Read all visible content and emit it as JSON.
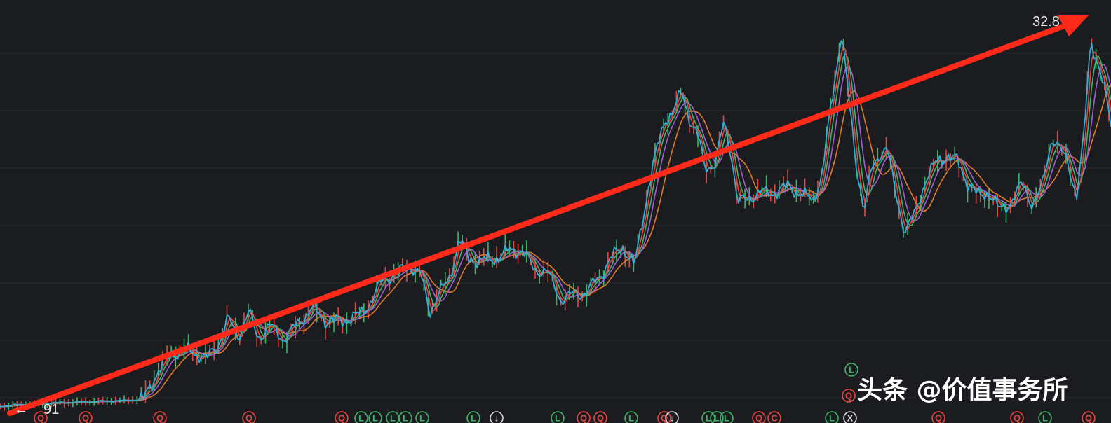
{
  "watermark": {
    "text": "头条 @价值事务所"
  },
  "chart_data": {
    "type": "line",
    "title": "",
    "xlabel": "",
    "ylabel": "",
    "price_high_label": "32.8",
    "price_low_label": "91",
    "grid": true,
    "y_gridlines": 8,
    "series": [
      {
        "name": "",
        "color": "#2fb0d6",
        "role": "price"
      },
      {
        "name": "",
        "color": "#e8443f",
        "role": "ma-fast"
      },
      {
        "name": "",
        "color": "#3fb36a",
        "role": "ma-mid"
      },
      {
        "name": "",
        "color": "#a35ed6",
        "role": "ma-slow"
      },
      {
        "name": "",
        "color": "#e07a2a",
        "role": "ma-long"
      }
    ],
    "trendline": {
      "color": "#ff2a1a",
      "direction": "up"
    },
    "event_markers": {
      "row1": [
        {
          "letter": "L",
          "color": "#3fb36a"
        },
        {
          "letter": "Q",
          "color": "#e8443f"
        }
      ],
      "bottom": [
        {
          "letter": "Q",
          "color": "#e8443f"
        },
        {
          "letter": "Q",
          "color": "#e8443f"
        },
        {
          "letter": "Q",
          "color": "#e8443f"
        },
        {
          "letter": "Q",
          "color": "#e8443f"
        },
        {
          "letter": "Q",
          "color": "#e8443f"
        },
        {
          "letter": "L",
          "color": "#3fb36a"
        },
        {
          "letter": "L",
          "color": "#3fb36a"
        },
        {
          "letter": "L",
          "color": "#3fb36a"
        },
        {
          "letter": "L",
          "color": "#3fb36a"
        },
        {
          "letter": "L",
          "color": "#3fb36a"
        },
        {
          "letter": "L",
          "color": "#3fb36a"
        },
        {
          "letter": "↓",
          "color": "#d8d8d8"
        },
        {
          "letter": "L",
          "color": "#3fb36a"
        },
        {
          "letter": "Q",
          "color": "#e8443f"
        },
        {
          "letter": "Q",
          "color": "#e8443f"
        },
        {
          "letter": "L",
          "color": "#3fb36a"
        },
        {
          "letter": "Q",
          "color": "#e8443f"
        },
        {
          "letter": "↓",
          "color": "#d8d8d8"
        },
        {
          "letter": "L",
          "color": "#3fb36a"
        },
        {
          "letter": "L",
          "color": "#3fb36a"
        },
        {
          "letter": "L",
          "color": "#3fb36a"
        },
        {
          "letter": "Q",
          "color": "#e8443f"
        },
        {
          "letter": "C",
          "color": "#e8443f"
        },
        {
          "letter": "L",
          "color": "#3fb36a"
        },
        {
          "letter": "X",
          "color": "#d8d8d8"
        },
        {
          "letter": "Q",
          "color": "#e8443f"
        },
        {
          "letter": "Q",
          "color": "#e8443f"
        },
        {
          "letter": "L",
          "color": "#3fb36a"
        },
        {
          "letter": "Q",
          "color": "#e8443f"
        }
      ]
    }
  }
}
